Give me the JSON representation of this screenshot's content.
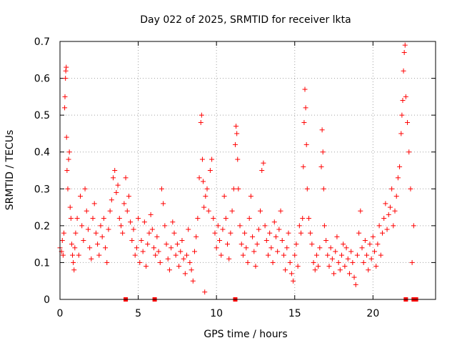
{
  "chart_data": {
    "type": "scatter",
    "title": "Day 022 of 2025, SRMTID for receiver lkta",
    "xlabel": "GPS time / hours",
    "ylabel": "SRMTID / TECUs",
    "xlim": [
      0,
      24
    ],
    "ylim": [
      0,
      0.7
    ],
    "xticks": [
      0,
      5,
      10,
      15,
      20
    ],
    "yticks": [
      0,
      0.1,
      0.2,
      0.3,
      0.4,
      0.5,
      0.6,
      0.7
    ],
    "xtick_labels": [
      "0",
      "5",
      "10",
      "15",
      "20"
    ],
    "ytick_labels": [
      "0",
      "0.1",
      "0.2",
      "0.3",
      "0.4",
      "0.5",
      "0.6",
      "0.7"
    ],
    "grid": true,
    "marker": "+",
    "series_color": "#ff0000",
    "series": [
      {
        "name": "SRMTID",
        "points": [
          [
            0.0,
            0.14
          ],
          [
            0.1,
            0.13
          ],
          [
            0.15,
            0.16
          ],
          [
            0.2,
            0.12
          ],
          [
            0.25,
            0.18
          ],
          [
            0.3,
            0.52
          ],
          [
            0.32,
            0.55
          ],
          [
            0.35,
            0.6
          ],
          [
            0.37,
            0.62
          ],
          [
            0.4,
            0.63
          ],
          [
            0.42,
            0.44
          ],
          [
            0.45,
            0.35
          ],
          [
            0.5,
            0.3
          ],
          [
            0.55,
            0.38
          ],
          [
            0.6,
            0.4
          ],
          [
            0.65,
            0.25
          ],
          [
            0.7,
            0.22
          ],
          [
            0.75,
            0.15
          ],
          [
            0.8,
            0.12
          ],
          [
            0.85,
            0.1
          ],
          [
            0.9,
            0.08
          ],
          [
            0.95,
            0.14
          ],
          [
            1.0,
            0.18
          ],
          [
            1.1,
            0.22
          ],
          [
            1.2,
            0.12
          ],
          [
            1.3,
            0.28
          ],
          [
            1.4,
            0.2
          ],
          [
            1.5,
            0.16
          ],
          [
            1.6,
            0.3
          ],
          [
            1.7,
            0.24
          ],
          [
            1.8,
            0.19
          ],
          [
            1.9,
            0.14
          ],
          [
            2.0,
            0.11
          ],
          [
            2.1,
            0.22
          ],
          [
            2.2,
            0.26
          ],
          [
            2.3,
            0.18
          ],
          [
            2.4,
            0.15
          ],
          [
            2.5,
            0.12
          ],
          [
            2.6,
            0.2
          ],
          [
            2.7,
            0.17
          ],
          [
            2.8,
            0.22
          ],
          [
            2.9,
            0.14
          ],
          [
            3.0,
            0.1
          ],
          [
            3.1,
            0.19
          ],
          [
            3.2,
            0.24
          ],
          [
            3.3,
            0.27
          ],
          [
            3.4,
            0.33
          ],
          [
            3.5,
            0.35
          ],
          [
            3.6,
            0.29
          ],
          [
            3.7,
            0.31
          ],
          [
            3.8,
            0.22
          ],
          [
            3.9,
            0.2
          ],
          [
            4.0,
            0.18
          ],
          [
            4.1,
            0.26
          ],
          [
            4.2,
            0.33
          ],
          [
            4.3,
            0.24
          ],
          [
            4.4,
            0.28
          ],
          [
            4.5,
            0.21
          ],
          [
            4.6,
            0.16
          ],
          [
            4.7,
            0.19
          ],
          [
            4.8,
            0.12
          ],
          [
            4.9,
            0.14
          ],
          [
            5.0,
            0.22
          ],
          [
            5.1,
            0.1
          ],
          [
            5.2,
            0.16
          ],
          [
            5.3,
            0.13
          ],
          [
            5.4,
            0.21
          ],
          [
            5.5,
            0.09
          ],
          [
            5.6,
            0.15
          ],
          [
            5.7,
            0.18
          ],
          [
            5.8,
            0.23
          ],
          [
            5.9,
            0.19
          ],
          [
            6.0,
            0.14
          ],
          [
            6.1,
            0.12
          ],
          [
            6.2,
            0.17
          ],
          [
            6.3,
            0.13
          ],
          [
            6.4,
            0.1
          ],
          [
            6.5,
            0.3
          ],
          [
            6.6,
            0.26
          ],
          [
            6.7,
            0.2
          ],
          [
            6.8,
            0.15
          ],
          [
            6.9,
            0.11
          ],
          [
            7.0,
            0.08
          ],
          [
            7.1,
            0.14
          ],
          [
            7.2,
            0.21
          ],
          [
            7.3,
            0.18
          ],
          [
            7.4,
            0.12
          ],
          [
            7.5,
            0.15
          ],
          [
            7.6,
            0.09
          ],
          [
            7.7,
            0.13
          ],
          [
            7.8,
            0.16
          ],
          [
            7.9,
            0.11
          ],
          [
            8.0,
            0.07
          ],
          [
            8.1,
            0.12
          ],
          [
            8.2,
            0.19
          ],
          [
            8.3,
            0.1
          ],
          [
            8.4,
            0.08
          ],
          [
            8.5,
            0.05
          ],
          [
            8.6,
            0.13
          ],
          [
            8.7,
            0.17
          ],
          [
            8.8,
            0.22
          ],
          [
            8.9,
            0.33
          ],
          [
            9.0,
            0.48
          ],
          [
            9.05,
            0.5
          ],
          [
            9.1,
            0.38
          ],
          [
            9.15,
            0.32
          ],
          [
            9.2,
            0.25
          ],
          [
            9.25,
            0.02
          ],
          [
            9.3,
            0.28
          ],
          [
            9.4,
            0.3
          ],
          [
            9.5,
            0.24
          ],
          [
            9.6,
            0.35
          ],
          [
            9.7,
            0.38
          ],
          [
            9.8,
            0.22
          ],
          [
            9.9,
            0.18
          ],
          [
            10.0,
            0.14
          ],
          [
            10.1,
            0.2
          ],
          [
            10.2,
            0.16
          ],
          [
            10.3,
            0.12
          ],
          [
            10.4,
            0.19
          ],
          [
            10.5,
            0.28
          ],
          [
            10.6,
            0.22
          ],
          [
            10.7,
            0.15
          ],
          [
            10.8,
            0.11
          ],
          [
            10.9,
            0.18
          ],
          [
            11.0,
            0.24
          ],
          [
            11.1,
            0.3
          ],
          [
            11.2,
            0.42
          ],
          [
            11.25,
            0.47
          ],
          [
            11.3,
            0.45
          ],
          [
            11.35,
            0.38
          ],
          [
            11.4,
            0.3
          ],
          [
            11.5,
            0.2
          ],
          [
            11.6,
            0.15
          ],
          [
            11.7,
            0.12
          ],
          [
            11.8,
            0.18
          ],
          [
            11.9,
            0.14
          ],
          [
            12.0,
            0.1
          ],
          [
            12.1,
            0.22
          ],
          [
            12.2,
            0.28
          ],
          [
            12.3,
            0.17
          ],
          [
            12.4,
            0.13
          ],
          [
            12.5,
            0.09
          ],
          [
            12.6,
            0.15
          ],
          [
            12.7,
            0.19
          ],
          [
            12.8,
            0.24
          ],
          [
            12.9,
            0.35
          ],
          [
            13.0,
            0.37
          ],
          [
            13.1,
            0.2
          ],
          [
            13.2,
            0.16
          ],
          [
            13.3,
            0.12
          ],
          [
            13.4,
            0.18
          ],
          [
            13.5,
            0.14
          ],
          [
            13.6,
            0.1
          ],
          [
            13.7,
            0.21
          ],
          [
            13.8,
            0.17
          ],
          [
            13.9,
            0.13
          ],
          [
            14.0,
            0.19
          ],
          [
            14.1,
            0.24
          ],
          [
            14.2,
            0.16
          ],
          [
            14.3,
            0.12
          ],
          [
            14.4,
            0.08
          ],
          [
            14.5,
            0.14
          ],
          [
            14.6,
            0.18
          ],
          [
            14.7,
            0.1
          ],
          [
            14.8,
            0.07
          ],
          [
            14.9,
            0.05
          ],
          [
            15.0,
            0.12
          ],
          [
            15.1,
            0.15
          ],
          [
            15.2,
            0.09
          ],
          [
            15.3,
            0.2
          ],
          [
            15.4,
            0.18
          ],
          [
            15.5,
            0.22
          ],
          [
            15.55,
            0.36
          ],
          [
            15.6,
            0.48
          ],
          [
            15.65,
            0.57
          ],
          [
            15.7,
            0.52
          ],
          [
            15.75,
            0.42
          ],
          [
            15.8,
            0.3
          ],
          [
            15.9,
            0.22
          ],
          [
            16.0,
            0.18
          ],
          [
            16.1,
            0.15
          ],
          [
            16.2,
            0.1
          ],
          [
            16.3,
            0.08
          ],
          [
            16.4,
            0.12
          ],
          [
            16.5,
            0.09
          ],
          [
            16.6,
            0.14
          ],
          [
            16.7,
            0.36
          ],
          [
            16.75,
            0.46
          ],
          [
            16.8,
            0.4
          ],
          [
            16.85,
            0.3
          ],
          [
            16.9,
            0.2
          ],
          [
            17.0,
            0.16
          ],
          [
            17.1,
            0.12
          ],
          [
            17.2,
            0.09
          ],
          [
            17.3,
            0.14
          ],
          [
            17.4,
            0.11
          ],
          [
            17.5,
            0.07
          ],
          [
            17.6,
            0.13
          ],
          [
            17.7,
            0.17
          ],
          [
            17.8,
            0.1
          ],
          [
            17.9,
            0.08
          ],
          [
            18.0,
            0.12
          ],
          [
            18.1,
            0.15
          ],
          [
            18.2,
            0.09
          ],
          [
            18.3,
            0.14
          ],
          [
            18.4,
            0.11
          ],
          [
            18.5,
            0.07
          ],
          [
            18.6,
            0.13
          ],
          [
            18.7,
            0.1
          ],
          [
            18.8,
            0.06
          ],
          [
            18.9,
            0.04
          ],
          [
            19.0,
            0.12
          ],
          [
            19.1,
            0.18
          ],
          [
            19.2,
            0.24
          ],
          [
            19.3,
            0.14
          ],
          [
            19.4,
            0.1
          ],
          [
            19.5,
            0.16
          ],
          [
            19.6,
            0.12
          ],
          [
            19.7,
            0.08
          ],
          [
            19.8,
            0.15
          ],
          [
            19.9,
            0.11
          ],
          [
            20.0,
            0.17
          ],
          [
            20.1,
            0.13
          ],
          [
            20.2,
            0.09
          ],
          [
            20.3,
            0.15
          ],
          [
            20.4,
            0.2
          ],
          [
            20.5,
            0.12
          ],
          [
            20.6,
            0.18
          ],
          [
            20.7,
            0.22
          ],
          [
            20.8,
            0.26
          ],
          [
            20.9,
            0.19
          ],
          [
            21.0,
            0.23
          ],
          [
            21.1,
            0.25
          ],
          [
            21.2,
            0.3
          ],
          [
            21.3,
            0.2
          ],
          [
            21.4,
            0.24
          ],
          [
            21.5,
            0.28
          ],
          [
            21.6,
            0.33
          ],
          [
            21.7,
            0.36
          ],
          [
            21.8,
            0.45
          ],
          [
            21.85,
            0.5
          ],
          [
            21.9,
            0.54
          ],
          [
            21.95,
            0.62
          ],
          [
            22.0,
            0.67
          ],
          [
            22.05,
            0.69
          ],
          [
            22.1,
            0.55
          ],
          [
            22.2,
            0.48
          ],
          [
            22.3,
            0.4
          ],
          [
            22.4,
            0.3
          ],
          [
            22.5,
            0.1
          ],
          [
            22.6,
            0.2
          ]
        ]
      }
    ],
    "bottom_markers_x": [
      4.2,
      6.05,
      11.2,
      22.1,
      22.6,
      22.75
    ]
  }
}
